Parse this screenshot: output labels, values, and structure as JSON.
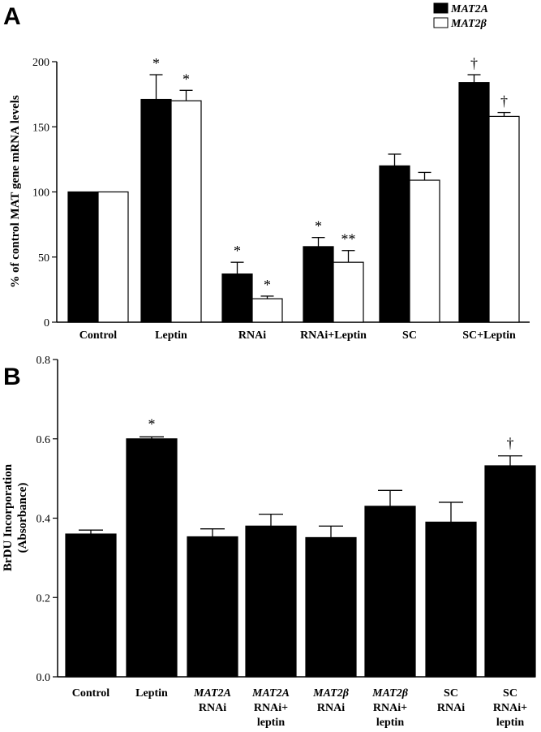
{
  "chart_data": [
    {
      "panel": "A",
      "type": "bar",
      "ylabel": "% of control MAT gene mRNA levels",
      "ylim": [
        0,
        200
      ],
      "yticks": [
        0,
        50,
        100,
        150,
        200
      ],
      "categories": [
        "Control",
        "Leptin",
        "RNAi",
        "RNAi+Leptin",
        "SC",
        "SC+Leptin"
      ],
      "legend_position": "top-right",
      "series": [
        {
          "name": "MAT2A",
          "color": "#000000",
          "values": [
            100,
            171,
            37,
            58,
            120,
            184
          ],
          "errors": [
            0,
            19,
            9,
            7,
            9,
            6
          ],
          "annotations": [
            "",
            "*",
            "*",
            "*",
            "",
            "†"
          ]
        },
        {
          "name": "MAT2β",
          "color": "#ffffff",
          "values": [
            100,
            170,
            18,
            46,
            109,
            158
          ],
          "errors": [
            0,
            8,
            2,
            9,
            6,
            3
          ],
          "annotations": [
            "",
            "*",
            "*",
            "**",
            "",
            "†"
          ]
        }
      ]
    },
    {
      "panel": "B",
      "type": "bar",
      "ylabel_line1": "BrDU Incorporation",
      "ylabel_line2": "(Absorbance)",
      "ylim": [
        0,
        0.8
      ],
      "yticks": [
        "0.0",
        "0.2",
        "0.4",
        "0.6",
        "0.8"
      ],
      "categories": [
        {
          "line1": "Control",
          "line2": "",
          "line3": "",
          "italic1": false
        },
        {
          "line1": "Leptin",
          "line2": "",
          "line3": "",
          "italic1": false
        },
        {
          "line1": "MAT2A",
          "line2": "RNAi",
          "line3": "",
          "italic1": true
        },
        {
          "line1": "MAT2A",
          "line2": "RNAi+",
          "line3": "leptin",
          "italic1": true
        },
        {
          "line1": "MAT2β",
          "line2": "RNAi",
          "line3": "",
          "italic1": true
        },
        {
          "line1": "MAT2β",
          "line2": "RNAi+",
          "line3": "leptin",
          "italic1": true
        },
        {
          "line1": "SC",
          "line2": "RNAi",
          "line3": "",
          "italic1": false
        },
        {
          "line1": "SC",
          "line2": "RNAi+",
          "line3": "leptin",
          "italic1": false
        }
      ],
      "values": [
        0.36,
        0.6,
        0.353,
        0.38,
        0.351,
        0.43,
        0.39,
        0.532
      ],
      "errors": [
        0.01,
        0.005,
        0.02,
        0.03,
        0.029,
        0.04,
        0.05,
        0.025
      ],
      "annotations": [
        "",
        "*",
        "",
        "",
        "",
        "",
        "",
        "†"
      ],
      "color": "#000000"
    }
  ]
}
